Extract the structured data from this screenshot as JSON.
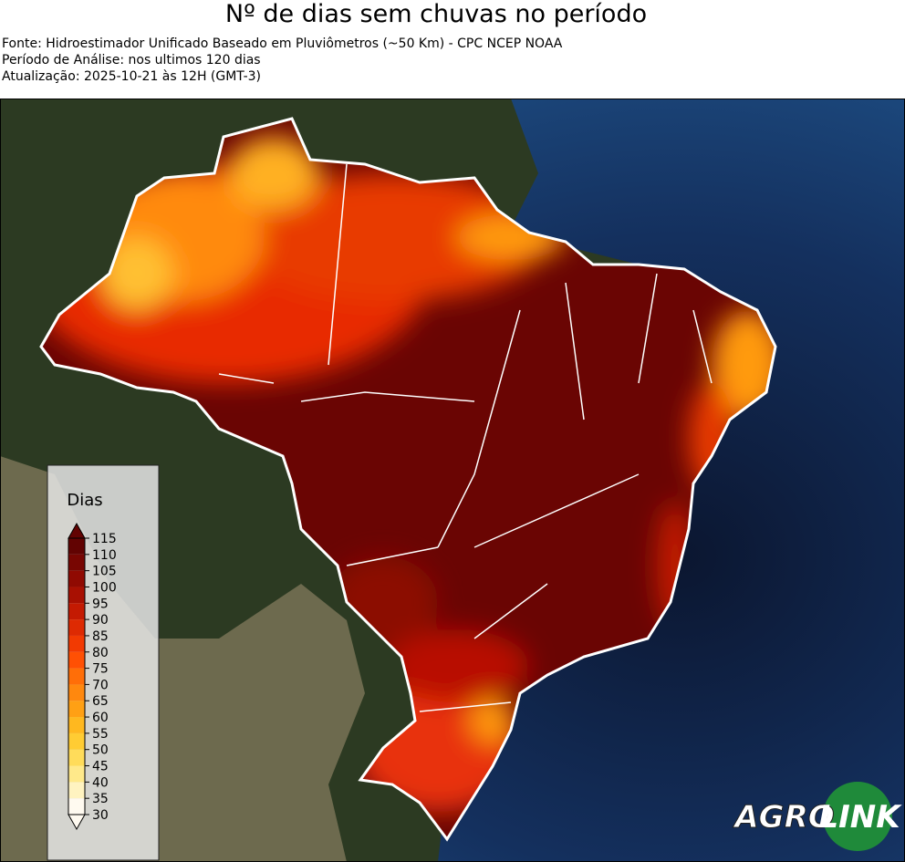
{
  "header": {
    "title": "Nº de dias sem chuvas no período",
    "lines": [
      "Fonte: Hidroestimador Unificado Baseado em Pluviômetros (~50 Km) - CPC NCEP NOAA",
      "Período de Análise: nos ultimos 120 dias",
      "Atualização: 2025-10-21 às 12H (GMT-3)"
    ]
  },
  "colorbar": {
    "title": "Dias",
    "ticks": [
      30,
      35,
      40,
      45,
      50,
      55,
      60,
      65,
      70,
      75,
      80,
      85,
      90,
      95,
      100,
      105,
      110,
      115
    ],
    "colors": [
      "#fffaf0",
      "#fff3c0",
      "#ffe98a",
      "#ffdc5a",
      "#ffcc33",
      "#ffb81f",
      "#ffa014",
      "#ff880e",
      "#ff6e08",
      "#ff5004",
      "#f23a02",
      "#de2a02",
      "#c41a02",
      "#a81002",
      "#900a02",
      "#780602",
      "#620302"
    ]
  },
  "logo": {
    "left": "AGRO",
    "right": "LINK"
  }
}
